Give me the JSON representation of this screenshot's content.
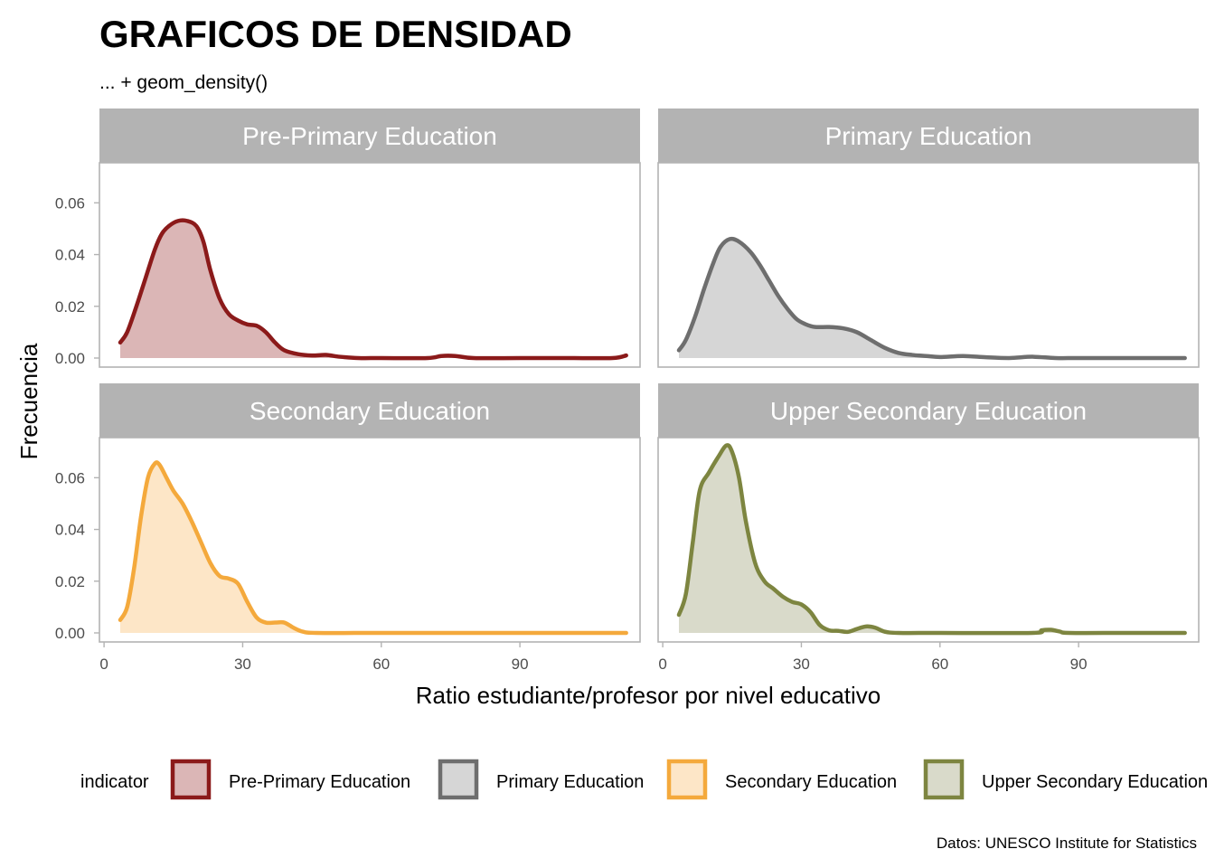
{
  "title": "GRAFICOS DE DENSIDAD",
  "subtitle": "... + geom_density()",
  "caption": "Datos: UNESCO Institute for Statistics",
  "chart_data": {
    "type": "area",
    "xlabel": "Ratio estudiante/profesor por nivel educativo",
    "ylabel": "Frecuencia",
    "xlim": [
      -1,
      116
    ],
    "ylim": [
      -0.0035,
      0.0755
    ],
    "x_ticks": [
      0,
      30,
      60,
      90
    ],
    "y_ticks": [
      0.0,
      0.02,
      0.04,
      0.06
    ],
    "y_tick_labels": [
      "0.00",
      "0.02",
      "0.04",
      "0.06"
    ],
    "grid": false,
    "legend": {
      "title": "indicator",
      "position": "bottom",
      "entries": [
        "Pre-Primary Education",
        "Primary Education",
        "Secondary Education",
        "Upper Secondary Education"
      ]
    },
    "series": [
      {
        "name": "Pre-Primary Education",
        "line_color": "#8B1A1A",
        "fill_color": "#DBB6B6",
        "points": [
          [
            3.5,
            0.006
          ],
          [
            5,
            0.01
          ],
          [
            7,
            0.02
          ],
          [
            9,
            0.031
          ],
          [
            11,
            0.042
          ],
          [
            12.5,
            0.048
          ],
          [
            14,
            0.051
          ],
          [
            16,
            0.053
          ],
          [
            18,
            0.053
          ],
          [
            20,
            0.051
          ],
          [
            21.5,
            0.045
          ],
          [
            23,
            0.034
          ],
          [
            25,
            0.023
          ],
          [
            27,
            0.017
          ],
          [
            29,
            0.0145
          ],
          [
            31,
            0.013
          ],
          [
            33,
            0.0125
          ],
          [
            35,
            0.01
          ],
          [
            37,
            0.006
          ],
          [
            39,
            0.003
          ],
          [
            42,
            0.0015
          ],
          [
            45,
            0.001
          ],
          [
            48,
            0.0012
          ],
          [
            51,
            0.0005
          ],
          [
            55,
            0.0
          ],
          [
            60,
            0.0
          ],
          [
            70,
            0.0
          ],
          [
            73,
            0.0008
          ],
          [
            76,
            0.0008
          ],
          [
            80,
            0.0
          ],
          [
            90,
            0.0
          ],
          [
            100,
            0.0
          ],
          [
            110,
            0.0
          ],
          [
            113,
            0.001
          ]
        ]
      },
      {
        "name": "Primary Education",
        "line_color": "#6E6E6E",
        "fill_color": "#D6D6D6",
        "points": [
          [
            3.5,
            0.003
          ],
          [
            5,
            0.007
          ],
          [
            7,
            0.016
          ],
          [
            9,
            0.027
          ],
          [
            11,
            0.037
          ],
          [
            12.5,
            0.043
          ],
          [
            14.5,
            0.046
          ],
          [
            16.5,
            0.045
          ],
          [
            19,
            0.041
          ],
          [
            21,
            0.036
          ],
          [
            23,
            0.03
          ],
          [
            25,
            0.024
          ],
          [
            27,
            0.019
          ],
          [
            29,
            0.015
          ],
          [
            31,
            0.013
          ],
          [
            33,
            0.012
          ],
          [
            36,
            0.012
          ],
          [
            39,
            0.0115
          ],
          [
            42,
            0.01
          ],
          [
            45,
            0.007
          ],
          [
            48,
            0.004
          ],
          [
            51,
            0.002
          ],
          [
            54,
            0.0012
          ],
          [
            57,
            0.0008
          ],
          [
            60,
            0.0004
          ],
          [
            65,
            0.0008
          ],
          [
            70,
            0.0003
          ],
          [
            75,
            0.0
          ],
          [
            80,
            0.0005
          ],
          [
            85,
            0.0
          ],
          [
            90,
            0.0
          ],
          [
            100,
            0.0
          ],
          [
            113,
            0.0
          ]
        ]
      },
      {
        "name": "Secondary Education",
        "line_color": "#F4A93C",
        "fill_color": "#FDE6C7",
        "points": [
          [
            3.5,
            0.005
          ],
          [
            5,
            0.01
          ],
          [
            6.5,
            0.025
          ],
          [
            8,
            0.045
          ],
          [
            9.5,
            0.06
          ],
          [
            11,
            0.0655
          ],
          [
            12,
            0.065
          ],
          [
            13.5,
            0.06
          ],
          [
            15,
            0.055
          ],
          [
            17,
            0.05
          ],
          [
            19,
            0.043
          ],
          [
            21,
            0.035
          ],
          [
            23,
            0.027
          ],
          [
            25,
            0.022
          ],
          [
            27,
            0.021
          ],
          [
            29,
            0.019
          ],
          [
            31,
            0.012
          ],
          [
            33,
            0.006
          ],
          [
            35,
            0.004
          ],
          [
            37,
            0.004
          ],
          [
            39,
            0.004
          ],
          [
            41,
            0.002
          ],
          [
            43,
            0.0005
          ],
          [
            46,
            0.0
          ],
          [
            60,
            0.0
          ],
          [
            80,
            0.0
          ],
          [
            100,
            0.0
          ],
          [
            113,
            0.0
          ]
        ]
      },
      {
        "name": "Upper Secondary Education",
        "line_color": "#7D8540",
        "fill_color": "#D9DACA",
        "points": [
          [
            3.5,
            0.007
          ],
          [
            5,
            0.015
          ],
          [
            6.5,
            0.035
          ],
          [
            8,
            0.055
          ],
          [
            10,
            0.062
          ],
          [
            12,
            0.068
          ],
          [
            13.8,
            0.0725
          ],
          [
            15,
            0.07
          ],
          [
            16.5,
            0.06
          ],
          [
            18,
            0.043
          ],
          [
            20,
            0.027
          ],
          [
            22,
            0.02
          ],
          [
            24,
            0.017
          ],
          [
            26,
            0.014
          ],
          [
            28,
            0.012
          ],
          [
            30,
            0.011
          ],
          [
            32,
            0.008
          ],
          [
            34,
            0.003
          ],
          [
            36,
            0.001
          ],
          [
            38,
            0.0008
          ],
          [
            40,
            0.0004
          ],
          [
            42,
            0.0015
          ],
          [
            44,
            0.0025
          ],
          [
            46,
            0.002
          ],
          [
            48,
            0.0005
          ],
          [
            51,
            0.0
          ],
          [
            60,
            0.0
          ],
          [
            80,
            0.0
          ],
          [
            82,
            0.001
          ],
          [
            84,
            0.0012
          ],
          [
            86,
            0.0005
          ],
          [
            88,
            0.0
          ],
          [
            100,
            0.0
          ],
          [
            113,
            0.0
          ]
        ]
      }
    ]
  }
}
